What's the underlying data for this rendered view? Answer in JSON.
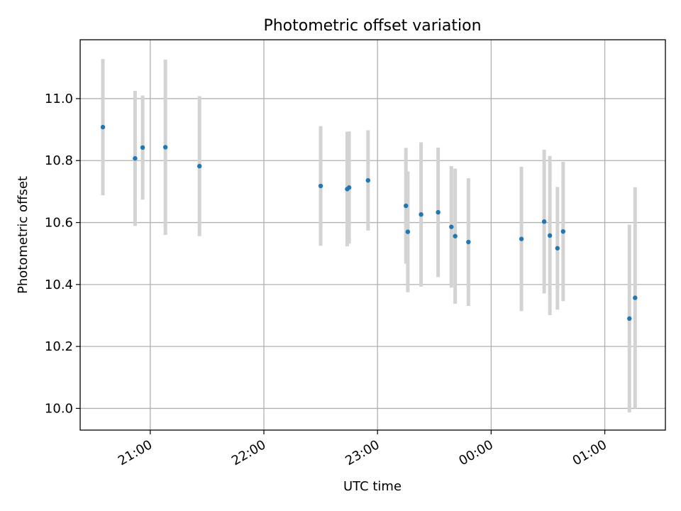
{
  "chart_data": {
    "type": "scatter",
    "title": "Photometric offset variation",
    "xlabel": "UTC time",
    "ylabel": "Photometric offset",
    "xlim": [
      "20:23",
      "01:32"
    ],
    "ylim": [
      9.93,
      11.19
    ],
    "xticks": [
      "21:00",
      "22:00",
      "23:00",
      "00:00",
      "01:00"
    ],
    "yticks": [
      10.0,
      10.2,
      10.4,
      10.6,
      10.8,
      11.0
    ],
    "grid": true,
    "colors": {
      "points": "#1f77b4",
      "errorbars": "#d3d3d3"
    },
    "points": [
      {
        "x": "20:35",
        "y": 10.908,
        "err": 0.22
      },
      {
        "x": "20:52",
        "y": 10.807,
        "err": 0.218
      },
      {
        "x": "20:56",
        "y": 10.842,
        "err": 0.168
      },
      {
        "x": "21:08",
        "y": 10.843,
        "err": 0.283
      },
      {
        "x": "21:26",
        "y": 10.782,
        "err": 0.226
      },
      {
        "x": "22:30",
        "y": 10.718,
        "err": 0.193
      },
      {
        "x": "22:44",
        "y": 10.708,
        "err": 0.185
      },
      {
        "x": "22:45",
        "y": 10.713,
        "err": 0.181
      },
      {
        "x": "22:55",
        "y": 10.736,
        "err": 0.162
      },
      {
        "x": "23:15",
        "y": 10.654,
        "err": 0.187
      },
      {
        "x": "23:16",
        "y": 10.57,
        "err": 0.195
      },
      {
        "x": "23:23",
        "y": 10.626,
        "err": 0.233
      },
      {
        "x": "23:32",
        "y": 10.633,
        "err": 0.209
      },
      {
        "x": "23:39",
        "y": 10.586,
        "err": 0.196
      },
      {
        "x": "23:41",
        "y": 10.556,
        "err": 0.218
      },
      {
        "x": "23:48",
        "y": 10.537,
        "err": 0.206
      },
      {
        "x": "00:16",
        "y": 10.547,
        "err": 0.233
      },
      {
        "x": "00:28",
        "y": 10.603,
        "err": 0.232
      },
      {
        "x": "00:31",
        "y": 10.558,
        "err": 0.257
      },
      {
        "x": "00:35",
        "y": 10.517,
        "err": 0.198
      },
      {
        "x": "00:38",
        "y": 10.571,
        "err": 0.225
      },
      {
        "x": "01:13",
        "y": 10.29,
        "err": 0.303
      },
      {
        "x": "01:16",
        "y": 10.357,
        "err": 0.357
      }
    ]
  }
}
